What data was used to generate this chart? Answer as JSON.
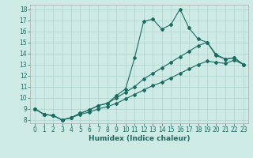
{
  "xlabel": "Humidex (Indice chaleur)",
  "bg_color": "#ceeae4",
  "grid_color": "#b0d4ce",
  "line_color": "#1a6b62",
  "xlim_min": -0.5,
  "xlim_max": 23.5,
  "ylim_min": 7.7,
  "ylim_max": 18.4,
  "yticks": [
    8,
    9,
    10,
    11,
    12,
    13,
    14,
    15,
    16,
    17,
    18
  ],
  "xticks": [
    0,
    1,
    2,
    3,
    4,
    5,
    6,
    7,
    8,
    9,
    10,
    11,
    12,
    13,
    14,
    15,
    16,
    17,
    18,
    19,
    20,
    21,
    22,
    23
  ],
  "s1_x": [
    0,
    1,
    2,
    3,
    4,
    5,
    6,
    7,
    8,
    9,
    10,
    11,
    12,
    13,
    14,
    15,
    16,
    17,
    18,
    19,
    20,
    21,
    22,
    23
  ],
  "s1_y": [
    9.0,
    8.5,
    8.4,
    8.0,
    8.2,
    8.6,
    8.9,
    9.3,
    9.5,
    10.2,
    10.8,
    13.6,
    16.9,
    17.1,
    16.2,
    16.6,
    18.0,
    16.3,
    15.3,
    15.0,
    13.9,
    13.5,
    13.6,
    13.0
  ],
  "s2_x": [
    0,
    1,
    2,
    3,
    4,
    5,
    6,
    7,
    8,
    9,
    10,
    11,
    12,
    13,
    14,
    15,
    16,
    17,
    18,
    19,
    20,
    21,
    22,
    23
  ],
  "s2_y": [
    9.0,
    8.5,
    8.4,
    8.0,
    8.2,
    8.6,
    8.9,
    9.3,
    9.5,
    10.0,
    10.5,
    11.0,
    11.7,
    12.2,
    12.7,
    13.2,
    13.7,
    14.2,
    14.7,
    15.0,
    13.8,
    13.5,
    13.6,
    13.0
  ],
  "s3_x": [
    0,
    1,
    2,
    3,
    4,
    5,
    6,
    7,
    8,
    9,
    10,
    11,
    12,
    13,
    14,
    15,
    16,
    17,
    18,
    19,
    20,
    21,
    22,
    23
  ],
  "s3_y": [
    9.0,
    8.5,
    8.4,
    8.0,
    8.2,
    8.5,
    8.7,
    9.0,
    9.2,
    9.5,
    9.9,
    10.3,
    10.7,
    11.1,
    11.4,
    11.8,
    12.2,
    12.6,
    13.0,
    13.3,
    13.2,
    13.1,
    13.4,
    13.0
  ],
  "tick_color": "#1a6b62",
  "xlabel_fontsize": 6.5,
  "tick_fontsize": 5.5,
  "marker_size": 2.0,
  "line_width": 0.8
}
